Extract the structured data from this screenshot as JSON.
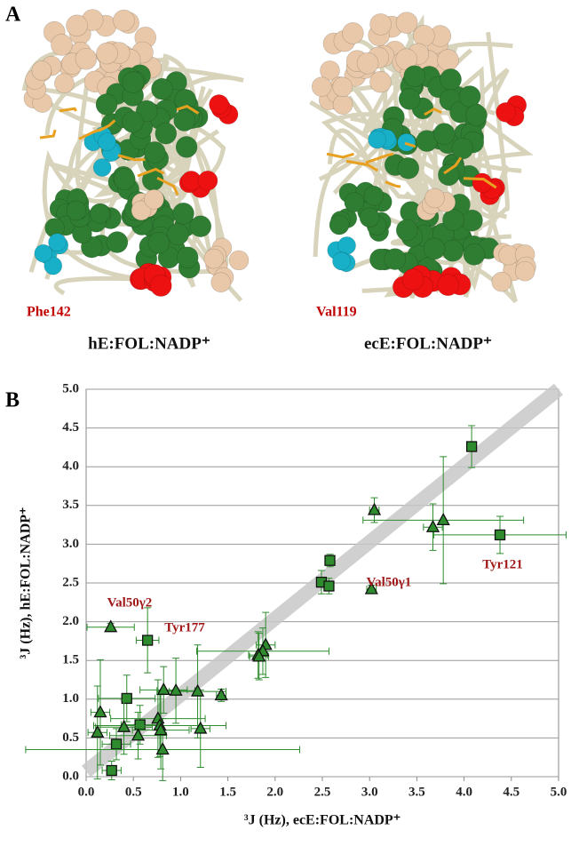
{
  "panel_a": {
    "label": "A",
    "structures": [
      {
        "residue": "Phe142",
        "caption": "hE:FOL:NADP⁺"
      },
      {
        "residue": "Val119",
        "caption": "ecE:FOL:NADP⁺"
      }
    ]
  },
  "chart_data": {
    "type": "scatter",
    "panel_label": "B",
    "x_label": "³J (Hz), ecE:FOL:NADP⁺",
    "y_label": "³J (Hz), hE:FOL:NADP⁺",
    "xlim": [
      0,
      5
    ],
    "ylim": [
      0,
      5
    ],
    "grid": true,
    "xticks": [
      {
        "value": 0,
        "label": "0.0"
      },
      {
        "value": 0.5,
        "label": "0.5"
      },
      {
        "value": 1,
        "label": "1.0"
      },
      {
        "value": 1.5,
        "label": "1.5"
      },
      {
        "value": 2,
        "label": "2.0"
      },
      {
        "value": 2.5,
        "label": "2.5"
      },
      {
        "value": 3,
        "label": "3.0"
      },
      {
        "value": 3.5,
        "label": "3.5"
      },
      {
        "value": 4,
        "label": "4.0"
      },
      {
        "value": 4.5,
        "label": "4.5"
      },
      {
        "value": 5,
        "label": "5.0"
      }
    ],
    "yticks": [
      {
        "value": 0,
        "label": "0.0"
      },
      {
        "value": 0.5,
        "label": "0.5"
      },
      {
        "value": 1,
        "label": "1.0"
      },
      {
        "value": 1.5,
        "label": "1.5"
      },
      {
        "value": 2,
        "label": "2.0"
      },
      {
        "value": 2.5,
        "label": "2.5"
      },
      {
        "value": 3,
        "label": "3.0"
      },
      {
        "value": 3.5,
        "label": "3.5"
      },
      {
        "value": 4,
        "label": "4.0"
      },
      {
        "value": 4.5,
        "label": "4.5"
      },
      {
        "value": 5,
        "label": "5.0"
      }
    ],
    "series": [
      {
        "marker": "square",
        "color": "#2e8b2e",
        "x": [
          4.08,
          4.38,
          2.58,
          2.49,
          2.57,
          0.65,
          0.43,
          0.57,
          0.32,
          0.27
        ],
        "values": [
          4.26,
          3.12,
          2.79,
          2.51,
          2.46,
          1.76,
          1.01,
          0.67,
          0.42,
          0.08
        ],
        "x_err": [
          0.05,
          0.7,
          0.05,
          0.05,
          0.05,
          0.12,
          0.3,
          0.2,
          0.15,
          0.1
        ],
        "y_err": [
          0.27,
          0.24,
          0.08,
          0.15,
          0.1,
          0.42,
          0.3,
          0.25,
          0.2,
          0.12
        ]
      },
      {
        "marker": "triangle",
        "color": "#2e8b2e",
        "x": [
          3.05,
          3.78,
          3.67,
          3.02,
          0.26,
          1.9,
          1.87,
          1.82,
          1.83,
          1.43,
          1.18,
          0.95,
          0.82,
          0.15,
          0.12,
          0.4,
          0.55,
          0.76,
          0.78,
          0.79,
          0.81,
          1.21
        ],
        "values": [
          3.44,
          3.31,
          3.22,
          2.42,
          1.93,
          1.7,
          1.62,
          1.57,
          1.55,
          1.05,
          1.1,
          1.11,
          1.12,
          0.83,
          0.57,
          0.64,
          0.53,
          0.75,
          0.66,
          0.6,
          0.35,
          0.62
        ],
        "x_err": [
          0.05,
          0.85,
          0.1,
          0.05,
          0.25,
          0.1,
          0.7,
          0.1,
          0.1,
          0.05,
          0.3,
          0.2,
          0.25,
          0.1,
          0.1,
          0.3,
          0.3,
          0.5,
          0.7,
          0.3,
          1.45,
          0.1
        ],
        "y_err": [
          0.16,
          0.82,
          0.3,
          0.05,
          0.05,
          0.42,
          0.3,
          0.3,
          0.3,
          0.08,
          0.6,
          0.42,
          0.3,
          0.68,
          0.6,
          0.35,
          0.3,
          0.5,
          0.4,
          0.5,
          0.4,
          0.5
        ]
      }
    ],
    "annotations": [
      "Tyr121",
      "Val50γ1",
      "Val50γ2",
      "Tyr177"
    ]
  }
}
